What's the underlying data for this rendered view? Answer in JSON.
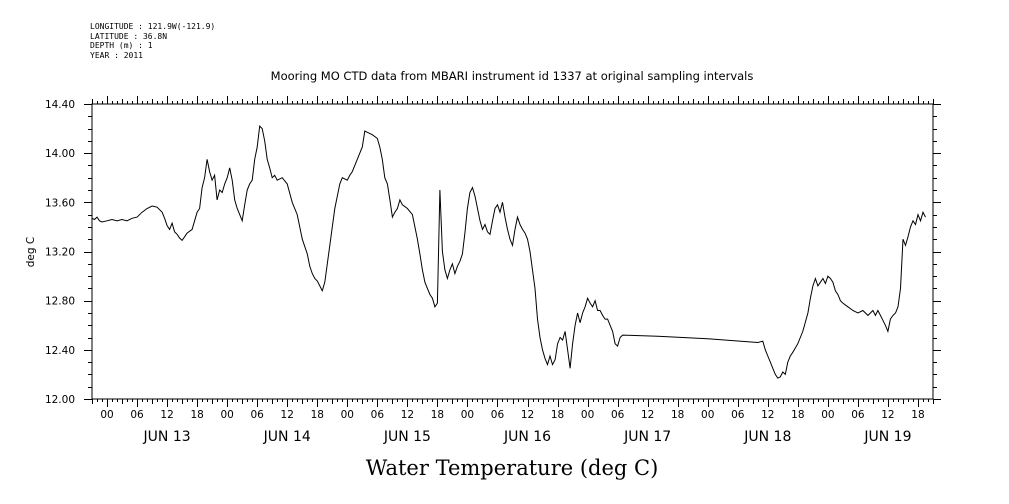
{
  "meta": {
    "lines": [
      "LONGITUDE : 121.9W(-121.9)",
      "LATITUDE : 36.8N",
      "DEPTH (m) : 1",
      "YEAR : 2011"
    ]
  },
  "chart_data": {
    "type": "line",
    "title": "Mooring MO CTD data from MBARI instrument id 1337 at original sampling intervals",
    "xlabel": "Water Temperature (deg C)",
    "ylabel": "deg C",
    "ylim": [
      12.0,
      14.4
    ],
    "yticks": [
      "12.00",
      "12.40",
      "12.80",
      "13.20",
      "13.60",
      "14.00",
      "14.40"
    ],
    "x_unit": "hours since 2011-06-13 00:00",
    "xlim": [
      -3,
      165
    ],
    "hour_tick_labels": [
      "00",
      "06",
      "12",
      "18",
      "00",
      "06",
      "12",
      "18",
      "00",
      "06",
      "12",
      "18",
      "00",
      "06",
      "12",
      "18",
      "00",
      "06",
      "12",
      "18",
      "00",
      "06",
      "12",
      "18",
      "00",
      "06",
      "12",
      "18"
    ],
    "day_labels": [
      "JUN 13",
      "JUN 14",
      "JUN 15",
      "JUN 16",
      "JUN 17",
      "JUN 18",
      "JUN 19"
    ],
    "series": [
      {
        "name": "",
        "color": "#000000",
        "points": [
          [
            -3,
            13.47
          ],
          [
            -2.5,
            13.46
          ],
          [
            -2,
            13.48
          ],
          [
            -1.5,
            13.45
          ],
          [
            -1,
            13.44
          ],
          [
            0,
            13.45
          ],
          [
            1,
            13.46
          ],
          [
            2,
            13.45
          ],
          [
            3,
            13.46
          ],
          [
            4,
            13.45
          ],
          [
            5,
            13.47
          ],
          [
            6,
            13.48
          ],
          [
            7,
            13.52
          ],
          [
            8,
            13.55
          ],
          [
            9,
            13.57
          ],
          [
            10,
            13.56
          ],
          [
            11,
            13.52
          ],
          [
            11.5,
            13.47
          ],
          [
            12,
            13.41
          ],
          [
            12.5,
            13.38
          ],
          [
            13,
            13.43
          ],
          [
            13.5,
            13.36
          ],
          [
            14,
            13.34
          ],
          [
            14.5,
            13.31
          ],
          [
            15,
            13.29
          ],
          [
            15.5,
            13.32
          ],
          [
            16,
            13.35
          ],
          [
            17,
            13.38
          ],
          [
            17.5,
            13.45
          ],
          [
            18,
            13.52
          ],
          [
            18.5,
            13.55
          ],
          [
            19,
            13.72
          ],
          [
            19.5,
            13.8
          ],
          [
            20,
            13.95
          ],
          [
            20.5,
            13.85
          ],
          [
            21,
            13.78
          ],
          [
            21.5,
            13.82
          ],
          [
            22,
            13.62
          ],
          [
            22.5,
            13.7
          ],
          [
            23,
            13.68
          ],
          [
            23.5,
            13.75
          ],
          [
            24,
            13.8
          ],
          [
            24.5,
            13.88
          ],
          [
            25,
            13.78
          ],
          [
            25.5,
            13.62
          ],
          [
            26,
            13.55
          ],
          [
            26.5,
            13.5
          ],
          [
            27,
            13.45
          ],
          [
            27.5,
            13.58
          ],
          [
            28,
            13.7
          ],
          [
            28.5,
            13.75
          ],
          [
            29,
            13.78
          ],
          [
            29.5,
            13.95
          ],
          [
            30,
            14.05
          ],
          [
            30.5,
            14.22
          ],
          [
            31,
            14.2
          ],
          [
            31.5,
            14.1
          ],
          [
            32,
            13.95
          ],
          [
            32.5,
            13.88
          ],
          [
            33,
            13.8
          ],
          [
            33.5,
            13.82
          ],
          [
            34,
            13.78
          ],
          [
            35,
            13.8
          ],
          [
            36,
            13.75
          ],
          [
            37,
            13.6
          ],
          [
            38,
            13.5
          ],
          [
            39,
            13.3
          ],
          [
            40,
            13.18
          ],
          [
            40.5,
            13.08
          ],
          [
            41,
            13.02
          ],
          [
            41.5,
            12.98
          ],
          [
            42,
            12.96
          ],
          [
            42.5,
            12.92
          ],
          [
            43,
            12.88
          ],
          [
            43.5,
            12.95
          ],
          [
            44,
            13.1
          ],
          [
            44.5,
            13.25
          ],
          [
            45,
            13.4
          ],
          [
            45.5,
            13.55
          ],
          [
            46,
            13.65
          ],
          [
            46.5,
            13.75
          ],
          [
            47,
            13.8
          ],
          [
            48,
            13.78
          ],
          [
            48.5,
            13.82
          ],
          [
            49,
            13.85
          ],
          [
            50,
            13.95
          ],
          [
            51,
            14.05
          ],
          [
            51.5,
            14.18
          ],
          [
            52,
            14.17
          ],
          [
            53,
            14.15
          ],
          [
            54,
            14.12
          ],
          [
            54.5,
            14.05
          ],
          [
            55,
            13.95
          ],
          [
            55.5,
            13.8
          ],
          [
            56,
            13.75
          ],
          [
            56.5,
            13.62
          ],
          [
            57,
            13.48
          ],
          [
            57.5,
            13.52
          ],
          [
            58,
            13.55
          ],
          [
            58.5,
            13.62
          ],
          [
            59,
            13.58
          ],
          [
            60,
            13.55
          ],
          [
            61,
            13.5
          ],
          [
            61.5,
            13.4
          ],
          [
            62,
            13.3
          ],
          [
            62.5,
            13.18
          ],
          [
            63,
            13.05
          ],
          [
            63.5,
            12.95
          ],
          [
            64,
            12.9
          ],
          [
            64.5,
            12.85
          ],
          [
            65,
            12.82
          ],
          [
            65.5,
            12.75
          ],
          [
            66,
            12.78
          ],
          [
            66.5,
            13.7
          ],
          [
            67,
            13.2
          ],
          [
            67.5,
            13.05
          ],
          [
            68,
            12.98
          ],
          [
            68.5,
            13.05
          ],
          [
            69,
            13.1
          ],
          [
            69.5,
            13.02
          ],
          [
            70,
            13.08
          ],
          [
            70.5,
            13.12
          ],
          [
            71,
            13.18
          ],
          [
            71.5,
            13.35
          ],
          [
            72,
            13.55
          ],
          [
            72.5,
            13.68
          ],
          [
            73,
            13.72
          ],
          [
            73.5,
            13.65
          ],
          [
            74,
            13.55
          ],
          [
            74.5,
            13.45
          ],
          [
            75,
            13.38
          ],
          [
            75.5,
            13.42
          ],
          [
            76,
            13.36
          ],
          [
            76.5,
            13.34
          ],
          [
            77,
            13.45
          ],
          [
            77.5,
            13.55
          ],
          [
            78,
            13.58
          ],
          [
            78.5,
            13.52
          ],
          [
            79,
            13.6
          ],
          [
            79.5,
            13.48
          ],
          [
            80,
            13.38
          ],
          [
            80.5,
            13.3
          ],
          [
            81,
            13.25
          ],
          [
            81.5,
            13.38
          ],
          [
            82,
            13.48
          ],
          [
            82.5,
            13.42
          ],
          [
            83,
            13.38
          ],
          [
            83.5,
            13.35
          ],
          [
            84,
            13.3
          ],
          [
            84.5,
            13.2
          ],
          [
            85,
            13.05
          ],
          [
            85.5,
            12.9
          ],
          [
            86,
            12.65
          ],
          [
            86.5,
            12.5
          ],
          [
            87,
            12.4
          ],
          [
            87.5,
            12.33
          ],
          [
            88,
            12.28
          ],
          [
            88.5,
            12.35
          ],
          [
            89,
            12.28
          ],
          [
            89.5,
            12.32
          ],
          [
            90,
            12.45
          ],
          [
            90.5,
            12.5
          ],
          [
            91,
            12.48
          ],
          [
            91.5,
            12.55
          ],
          [
            92,
            12.4
          ],
          [
            92.5,
            12.25
          ],
          [
            93,
            12.45
          ],
          [
            93.5,
            12.6
          ],
          [
            94,
            12.7
          ],
          [
            94.5,
            12.62
          ],
          [
            95,
            12.7
          ],
          [
            95.5,
            12.75
          ],
          [
            96,
            12.82
          ],
          [
            96.5,
            12.78
          ],
          [
            97,
            12.75
          ],
          [
            97.5,
            12.8
          ],
          [
            98,
            12.72
          ],
          [
            98.5,
            12.72
          ],
          [
            99,
            12.68
          ],
          [
            99.5,
            12.65
          ],
          [
            100,
            12.65
          ],
          [
            100.5,
            12.6
          ],
          [
            101,
            12.55
          ],
          [
            101.5,
            12.45
          ],
          [
            102,
            12.43
          ],
          [
            102.5,
            12.5
          ],
          [
            103,
            12.52
          ],
          [
            110,
            12.51
          ],
          [
            120,
            12.49
          ],
          [
            130,
            12.46
          ],
          [
            131,
            12.47
          ],
          [
            131.5,
            12.4
          ],
          [
            132,
            12.35
          ],
          [
            132.5,
            12.3
          ],
          [
            133,
            12.25
          ],
          [
            133.5,
            12.2
          ],
          [
            134,
            12.17
          ],
          [
            134.5,
            12.18
          ],
          [
            135,
            12.22
          ],
          [
            135.5,
            12.2
          ],
          [
            136,
            12.3
          ],
          [
            136.5,
            12.35
          ],
          [
            137,
            12.38
          ],
          [
            138,
            12.45
          ],
          [
            139,
            12.55
          ],
          [
            140,
            12.7
          ],
          [
            140.5,
            12.82
          ],
          [
            141,
            12.92
          ],
          [
            141.5,
            12.98
          ],
          [
            142,
            12.92
          ],
          [
            142.5,
            12.95
          ],
          [
            143,
            12.98
          ],
          [
            143.5,
            12.94
          ],
          [
            144,
            13.0
          ],
          [
            144.5,
            12.98
          ],
          [
            145,
            12.95
          ],
          [
            145.5,
            12.88
          ],
          [
            146,
            12.85
          ],
          [
            146.5,
            12.8
          ],
          [
            147,
            12.78
          ],
          [
            148,
            12.75
          ],
          [
            149,
            12.72
          ],
          [
            150,
            12.7
          ],
          [
            151,
            12.72
          ],
          [
            152,
            12.68
          ],
          [
            152.5,
            12.7
          ],
          [
            153,
            12.72
          ],
          [
            153.5,
            12.68
          ],
          [
            154,
            12.72
          ],
          [
            154.5,
            12.68
          ],
          [
            155,
            12.64
          ],
          [
            155.5,
            12.6
          ],
          [
            156,
            12.55
          ],
          [
            156.5,
            12.65
          ],
          [
            157,
            12.68
          ],
          [
            157.5,
            12.7
          ],
          [
            158,
            12.75
          ],
          [
            158.5,
            12.9
          ],
          [
            159,
            13.3
          ],
          [
            159.5,
            13.25
          ],
          [
            160,
            13.32
          ],
          [
            160.5,
            13.4
          ],
          [
            161,
            13.45
          ],
          [
            161.5,
            13.42
          ],
          [
            162,
            13.5
          ],
          [
            162.5,
            13.45
          ],
          [
            163,
            13.52
          ],
          [
            163.5,
            13.48
          ]
        ]
      }
    ]
  }
}
